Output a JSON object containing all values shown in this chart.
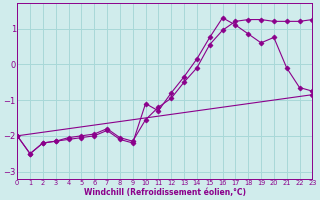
{
  "xlabel": "Windchill (Refroidissement éolien,°C)",
  "bg_color": "#d0ecec",
  "line_color": "#8b008b",
  "grid_color": "#a8d8d8",
  "xlim": [
    0,
    23
  ],
  "ylim": [
    -3.2,
    1.7
  ],
  "yticks": [
    -3,
    -2,
    -1,
    0,
    1
  ],
  "xticks": [
    0,
    1,
    2,
    3,
    4,
    5,
    6,
    7,
    8,
    9,
    10,
    11,
    12,
    13,
    14,
    15,
    16,
    17,
    18,
    19,
    20,
    21,
    22,
    23
  ],
  "line1_x": [
    0,
    1,
    2,
    3,
    4,
    5,
    6,
    7,
    8,
    9,
    10,
    11,
    12,
    13,
    14,
    15,
    16,
    17,
    18,
    19,
    20,
    21,
    22,
    23
  ],
  "line1_y": [
    -2.0,
    -2.5,
    -2.2,
    -2.15,
    -2.1,
    -2.05,
    -2.0,
    -1.85,
    -2.1,
    -2.2,
    -1.1,
    -1.3,
    -0.8,
    -0.35,
    0.15,
    0.75,
    1.3,
    1.1,
    0.85,
    0.6,
    0.75,
    -0.1,
    -0.65,
    -0.75
  ],
  "line2_x": [
    0,
    1,
    2,
    3,
    4,
    5,
    6,
    7,
    8,
    9,
    10,
    11,
    12,
    13,
    14,
    15,
    16,
    17,
    18,
    19,
    20,
    21,
    22,
    23
  ],
  "line2_y": [
    -2.0,
    -2.5,
    -2.2,
    -2.15,
    -2.05,
    -2.0,
    -1.95,
    -1.8,
    -2.05,
    -2.15,
    -1.55,
    -1.2,
    -0.95,
    -0.5,
    -0.1,
    0.55,
    0.95,
    1.2,
    1.25,
    1.25,
    1.2,
    1.2,
    1.2,
    1.25
  ],
  "line3_x": [
    0,
    23
  ],
  "line3_y": [
    -2.0,
    -0.85
  ]
}
